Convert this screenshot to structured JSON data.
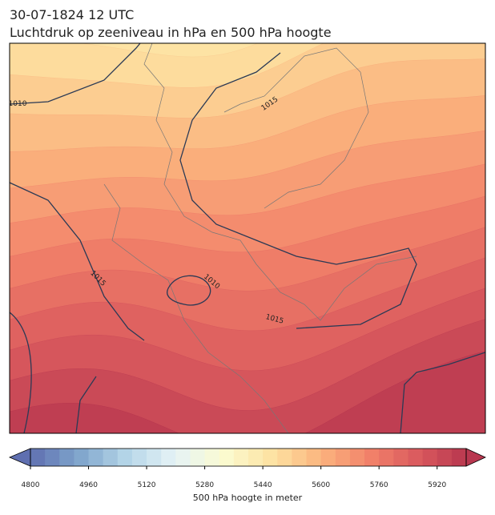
{
  "header": {
    "date": "30-07-1824 12 UTC",
    "title": "Luchtdruk op zeeniveau in hPa en 500 hPa hoogte"
  },
  "map": {
    "contour_labels": [
      "1010",
      "1015",
      "1015",
      "1010",
      "1015"
    ]
  },
  "colorbar": {
    "label": "500 hPa hoogte in meter",
    "range": [
      4800,
      6000
    ],
    "ticks": [
      4800,
      4960,
      5120,
      5280,
      5440,
      5600,
      5760,
      5920
    ]
  }
}
